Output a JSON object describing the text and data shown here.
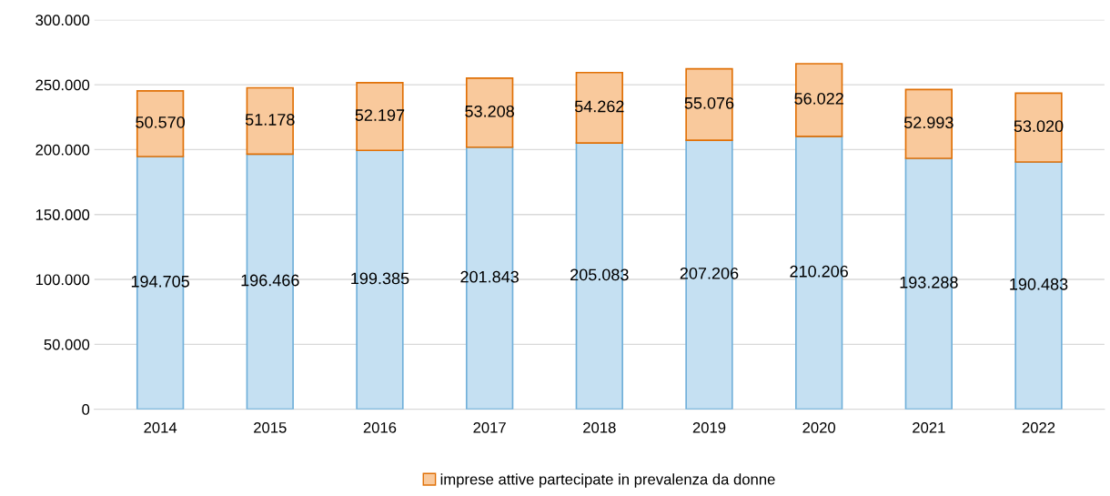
{
  "chart_data": {
    "type": "bar",
    "stacked": true,
    "categories": [
      "2014",
      "2015",
      "2016",
      "2017",
      "2018",
      "2019",
      "2020",
      "2021",
      "2022"
    ],
    "series": [
      {
        "color": "#c5e0f2",
        "values": [
          194705,
          196466,
          199385,
          201843,
          205083,
          207206,
          210206,
          193288,
          190483
        ],
        "value_labels": [
          "194.705",
          "196.466",
          "199.385",
          "201.843",
          "205.083",
          "207.206",
          "210.206",
          "193.288",
          "190.483"
        ]
      },
      {
        "name": "imprese attive partecipate in prevalenza da donne",
        "color": "#f9c99c",
        "values": [
          50570,
          51178,
          52197,
          53208,
          54262,
          55076,
          56022,
          52993,
          53020
        ],
        "value_labels": [
          "50.570",
          "51.178",
          "52.197",
          "53.208",
          "54.262",
          "55.076",
          "56.022",
          "52.993",
          "53.020"
        ]
      }
    ],
    "ylim": [
      0,
      300000
    ],
    "yticks": [
      {
        "value": 0,
        "label": "0"
      },
      {
        "value": 50000,
        "label": "50.000"
      },
      {
        "value": 100000,
        "label": "100.000"
      },
      {
        "value": 150000,
        "label": "150.000"
      },
      {
        "value": 200000,
        "label": "200.000"
      },
      {
        "value": 250000,
        "label": "250.000"
      },
      {
        "value": 300000,
        "label": "300.000"
      }
    ],
    "grid": "y",
    "legend": "bottom"
  }
}
